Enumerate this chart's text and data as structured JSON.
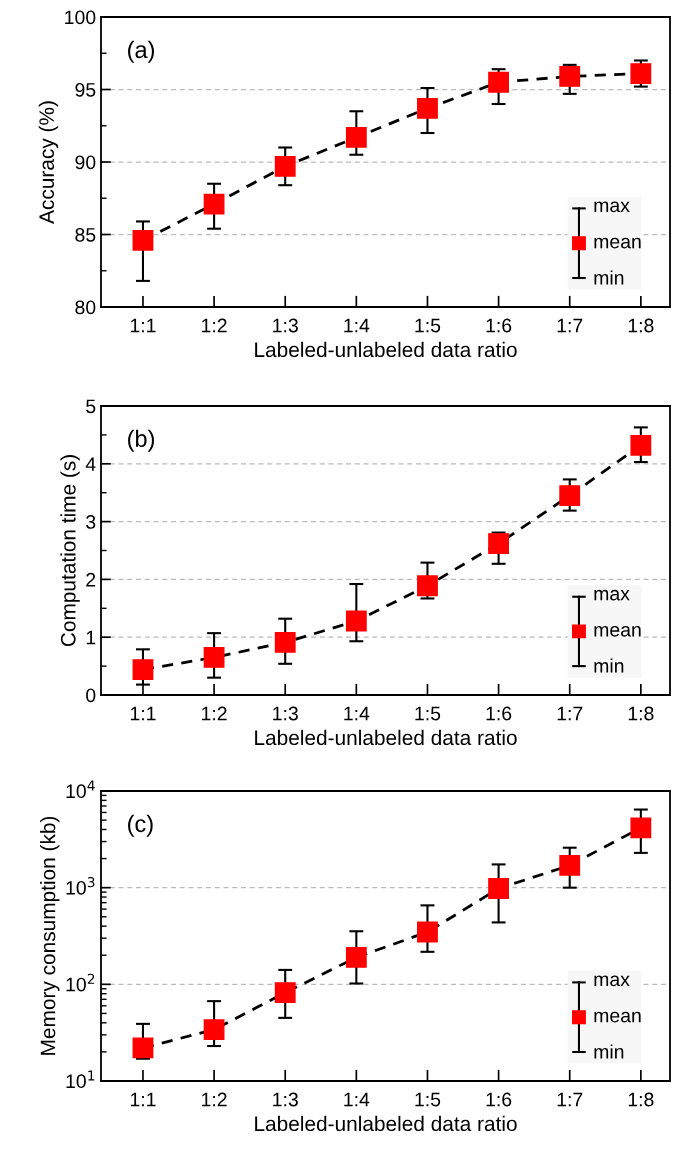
{
  "chart_data": [
    {
      "type": "line",
      "xlabel": "Labeled-unlabeled data ratio",
      "ylabel": "Accuracy (%)",
      "categories": [
        "1:1",
        "1:2",
        "1:3",
        "1:4",
        "1:5",
        "1:6",
        "1:7",
        "1:8"
      ],
      "series": [
        {
          "name": "mean",
          "color": "#ff0000",
          "values": [
            84.6,
            87.1,
            89.7,
            91.7,
            93.7,
            95.5,
            95.9,
            96.1
          ],
          "errors": [
            [
              81.8,
              85.9
            ],
            [
              85.4,
              88.5
            ],
            [
              88.4,
              91.0
            ],
            [
              90.5,
              93.5
            ],
            [
              92.0,
              95.1
            ],
            [
              94.0,
              96.4
            ],
            [
              94.7,
              96.7
            ],
            [
              95.2,
              97.0
            ]
          ]
        }
      ],
      "ylim": [
        80,
        100
      ],
      "yticks": [
        80,
        85,
        90,
        95,
        100
      ],
      "grid": "y",
      "legend": "bottom right",
      "marker": "square",
      "line_style": "dashed",
      "annotations": [
        "(a)",
        "max",
        "min"
      ]
    },
    {
      "type": "line",
      "xlabel": "Labeled-unlabeled data ratio",
      "ylabel": "Computation time (s)",
      "categories": [
        "1:1",
        "1:2",
        "1:3",
        "1:4",
        "1:5",
        "1:6",
        "1:7",
        "1:8"
      ],
      "series": [
        {
          "name": "mean",
          "color": "#ff0000",
          "values": [
            0.44,
            0.65,
            0.91,
            1.28,
            1.89,
            2.62,
            3.45,
            4.32
          ],
          "errors": [
            [
              0.18,
              0.79
            ],
            [
              0.3,
              1.07
            ],
            [
              0.54,
              1.32
            ],
            [
              0.93,
              1.92
            ],
            [
              1.67,
              2.29
            ],
            [
              2.27,
              2.81
            ],
            [
              3.19,
              3.73
            ],
            [
              4.03,
              4.63
            ]
          ]
        }
      ],
      "ylim": [
        0,
        5
      ],
      "yticks": [
        0,
        1,
        2,
        3,
        4,
        5
      ],
      "grid": "y",
      "legend": "bottom right",
      "marker": "square",
      "line_style": "dashed",
      "annotations": [
        "(b)",
        "max",
        "min"
      ]
    },
    {
      "type": "line",
      "xlabel": "Labeled-unlabeled data ratio",
      "ylabel": "Memory consumption (kb)",
      "categories": [
        "1:1",
        "1:2",
        "1:3",
        "1:4",
        "1:5",
        "1:6",
        "1:7",
        "1:8"
      ],
      "series": [
        {
          "name": "mean",
          "color": "#ff0000",
          "values": [
            22,
            34,
            82,
            190,
            348,
            980,
            1700,
            4160
          ],
          "errors": [
            [
              17,
              39
            ],
            [
              23,
              67
            ],
            [
              45,
              141
            ],
            [
              102,
              354
            ],
            [
              217,
              656
            ],
            [
              437,
              1740
            ],
            [
              1000,
              2590
            ],
            [
              2290,
              6430
            ]
          ]
        }
      ],
      "log": "y",
      "ylim": [
        10,
        10000
      ],
      "yticks": [
        {
          "value": 10,
          "label": "10$^{1}$"
        },
        {
          "value": 100,
          "label": "10$^{2}$"
        },
        {
          "value": 1000,
          "label": "10$^{3}$"
        },
        {
          "value": 10000,
          "label": "10$^{4}$"
        }
      ],
      "grid": "y",
      "legend": "bottom right",
      "marker": "square",
      "line_style": "dashed",
      "annotations": [
        "(c)",
        "max",
        "min"
      ]
    }
  ]
}
